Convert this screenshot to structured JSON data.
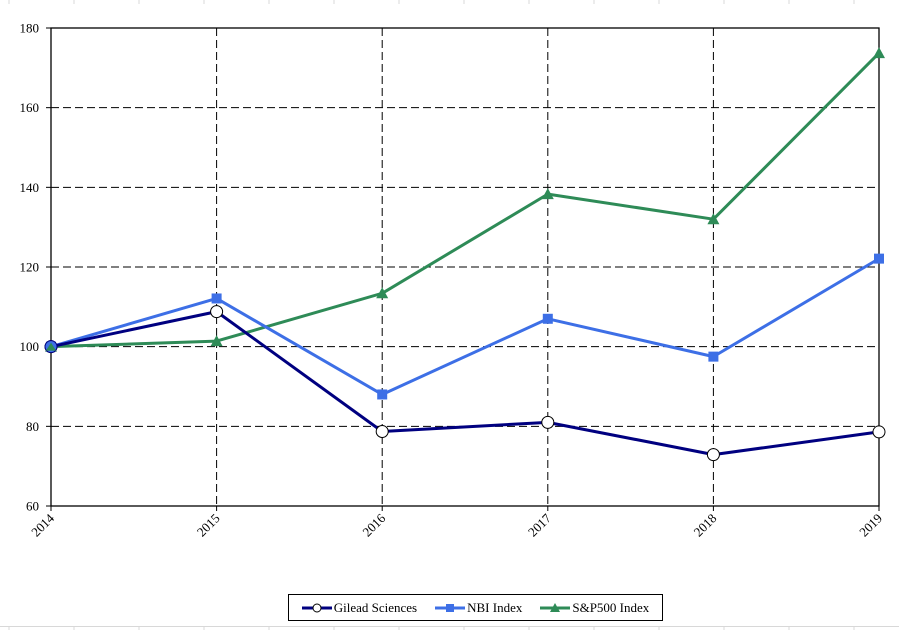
{
  "chart_data": {
    "type": "line",
    "title": "",
    "xlabel": "",
    "ylabel": "",
    "x": [
      "2014",
      "2015",
      "2016",
      "2017",
      "2018",
      "2019"
    ],
    "ylim": [
      60,
      180
    ],
    "yticks": [
      60,
      80,
      100,
      120,
      140,
      160,
      180
    ],
    "grid": true,
    "grid_style": "dashed",
    "legend_position": "bottom",
    "series": [
      {
        "name": "Gilead Sciences",
        "color": "#000080",
        "marker": "open-circle",
        "values": [
          100,
          108.8,
          78.7,
          81.0,
          72.9,
          78.6
        ]
      },
      {
        "name": "NBI Index",
        "color": "#3d6fe6",
        "marker": "square",
        "values": [
          100,
          112.1,
          88.0,
          107.0,
          97.5,
          122.1
        ]
      },
      {
        "name": "S&P500 Index",
        "color": "#2e8b57",
        "marker": "triangle",
        "values": [
          100,
          101.4,
          113.4,
          138.3,
          132.0,
          173.7
        ]
      }
    ]
  },
  "legend": {
    "items": [
      {
        "label": "Gilead Sciences"
      },
      {
        "label": "NBI Index"
      },
      {
        "label": "S&P500 Index"
      }
    ]
  }
}
